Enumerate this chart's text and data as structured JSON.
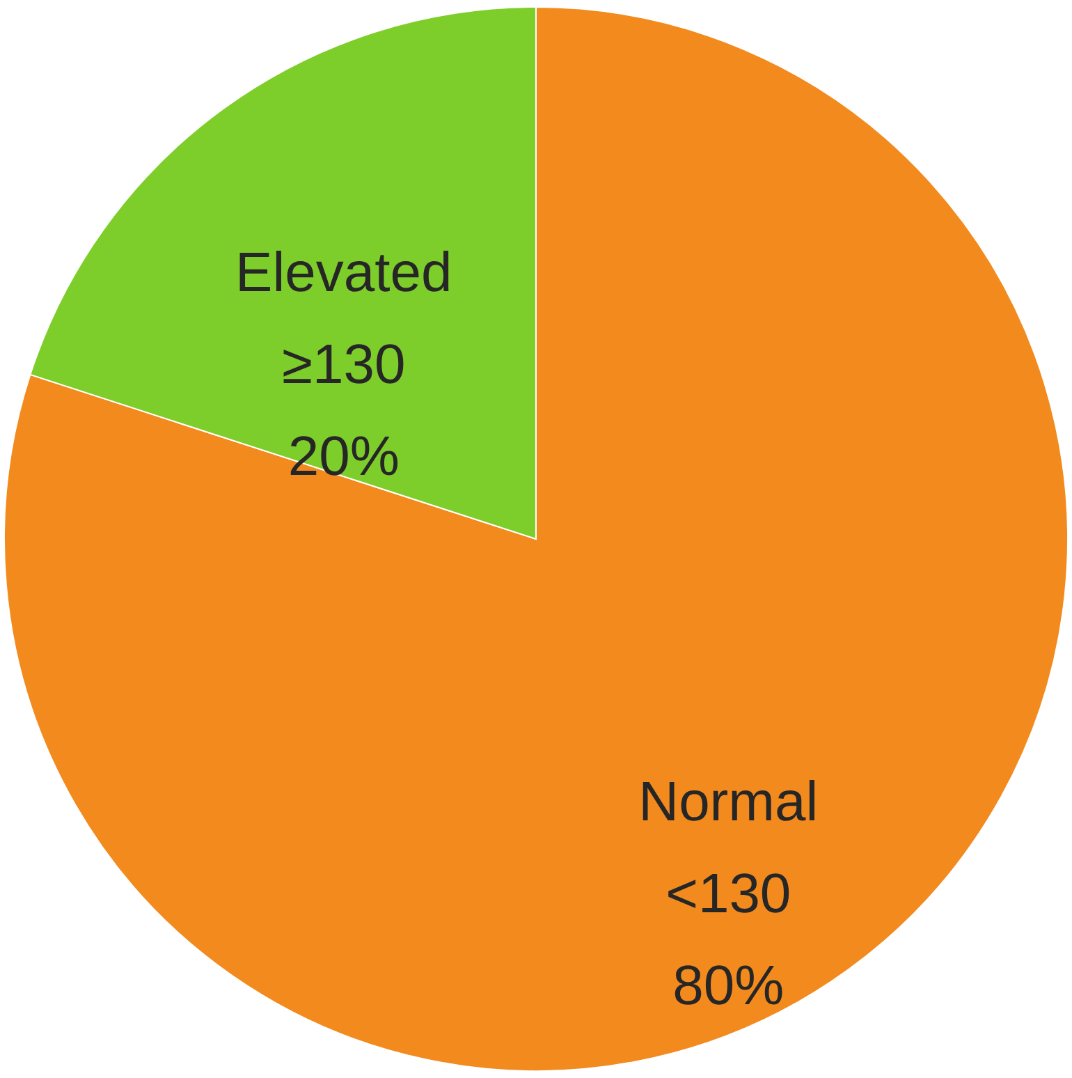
{
  "chart_data": {
    "type": "pie",
    "categories": [
      "Normal\n<130",
      "Elevated\n≥130"
    ],
    "values": [
      80,
      20
    ],
    "colors": [
      "#f28a1e",
      "#7dce2a"
    ],
    "value_labels": [
      "80%",
      "20%"
    ]
  }
}
